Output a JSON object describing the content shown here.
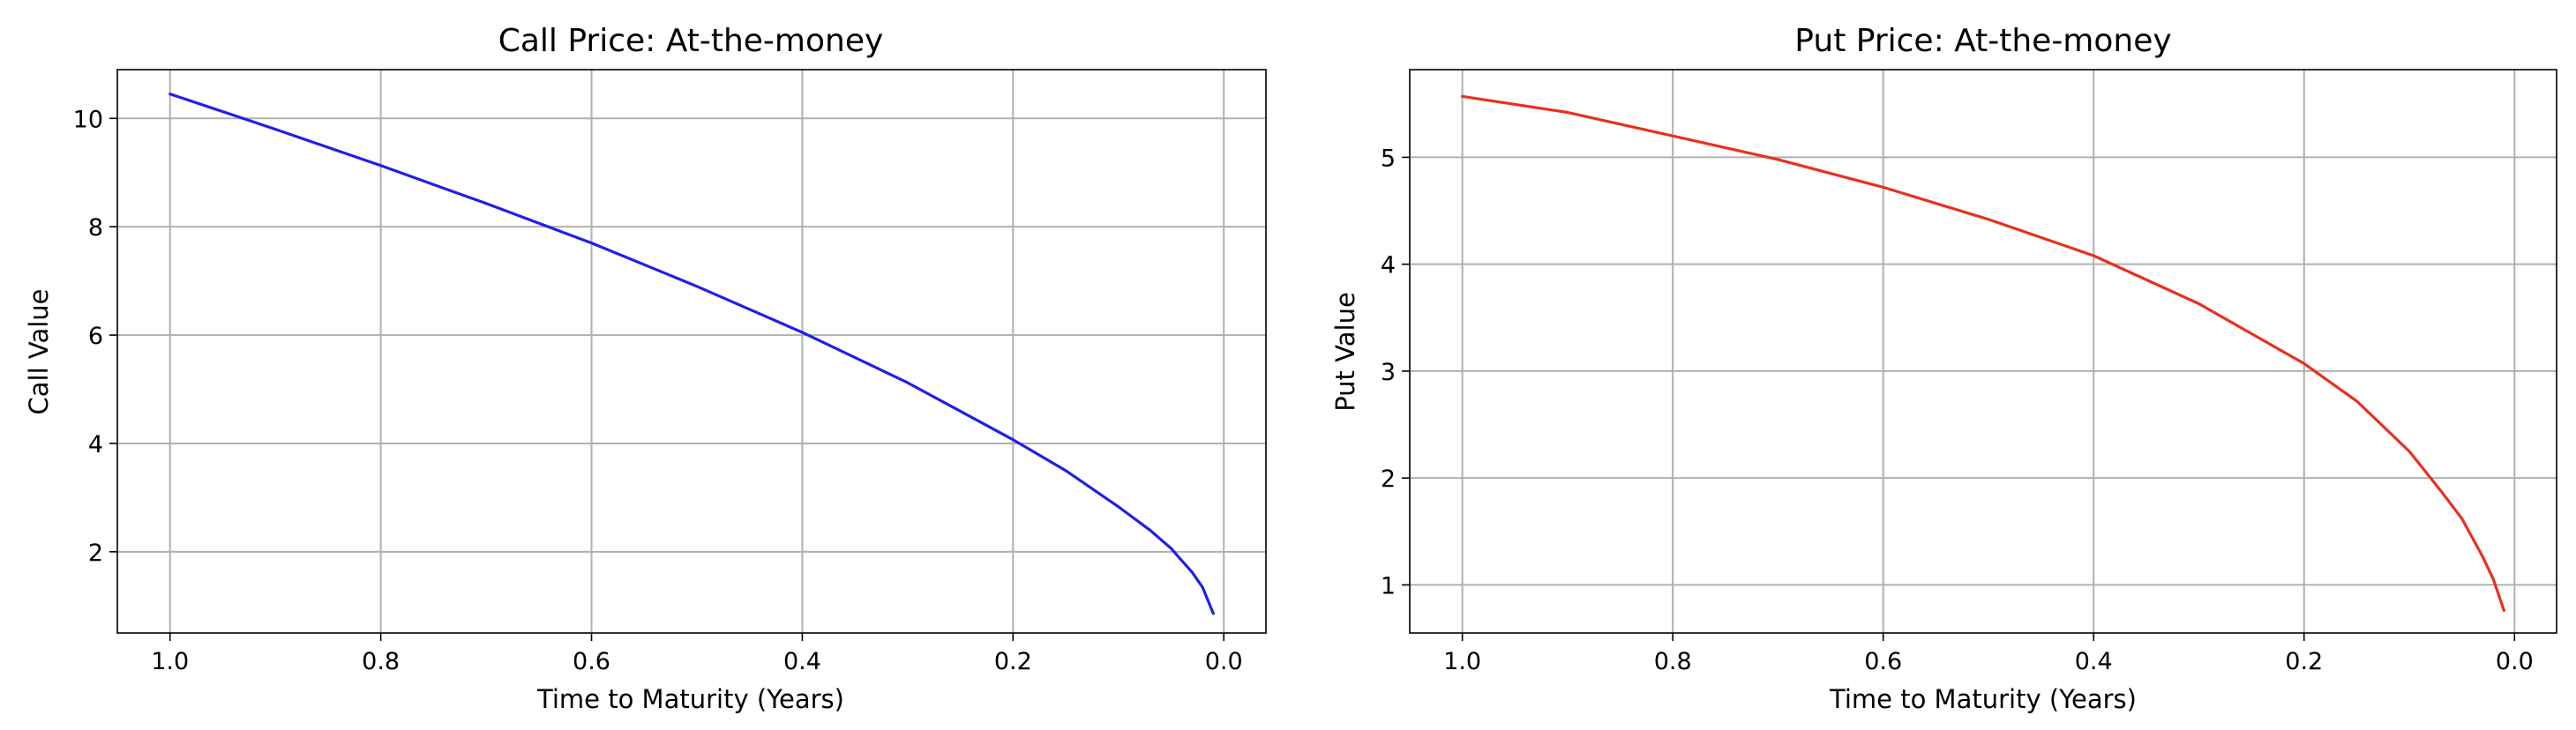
{
  "chart_data": [
    {
      "type": "line",
      "title": "Call Price: At-the-money",
      "xlabel": "Time to Maturity (Years)",
      "ylabel": "Call Value",
      "xlim": [
        1.05,
        -0.04
      ],
      "ylim": [
        0.5,
        10.9
      ],
      "x_ticks": [
        1.0,
        0.8,
        0.6,
        0.4,
        0.2,
        0.0
      ],
      "y_ticks": [
        2,
        4,
        6,
        8,
        10
      ],
      "x_tick_labels": [
        "1.0",
        "0.8",
        "0.6",
        "0.4",
        "0.2",
        "0.0"
      ],
      "y_tick_labels": [
        "2",
        "4",
        "6",
        "8",
        "10"
      ],
      "grid": true,
      "series": [
        {
          "color": "#1f1fe8",
          "x": [
            1.0,
            0.9,
            0.8,
            0.7,
            0.6,
            0.5,
            0.4,
            0.3,
            0.2,
            0.15,
            0.1,
            0.07,
            0.05,
            0.03,
            0.02,
            0.01
          ],
          "y": [
            10.45,
            9.8,
            9.13,
            8.43,
            7.7,
            6.9,
            6.05,
            5.12,
            4.07,
            3.5,
            2.83,
            2.4,
            2.06,
            1.62,
            1.34,
            0.86
          ]
        }
      ]
    },
    {
      "type": "line",
      "title": "Put Price: At-the-money",
      "xlabel": "Time to Maturity (Years)",
      "ylabel": "Put Value",
      "xlim": [
        1.05,
        -0.04
      ],
      "ylim": [
        0.55,
        5.82
      ],
      "x_ticks": [
        1.0,
        0.8,
        0.6,
        0.4,
        0.2,
        0.0
      ],
      "y_ticks": [
        1,
        2,
        3,
        4,
        5
      ],
      "x_tick_labels": [
        "1.0",
        "0.8",
        "0.6",
        "0.4",
        "0.2",
        "0.0"
      ],
      "y_tick_labels": [
        "1",
        "2",
        "3",
        "4",
        "5"
      ],
      "grid": true,
      "series": [
        {
          "color": "#e8301f",
          "x": [
            1.0,
            0.9,
            0.8,
            0.7,
            0.6,
            0.5,
            0.4,
            0.3,
            0.2,
            0.15,
            0.1,
            0.07,
            0.05,
            0.03,
            0.02,
            0.01
          ],
          "y": [
            5.57,
            5.42,
            5.2,
            4.98,
            4.72,
            4.42,
            4.08,
            3.63,
            3.07,
            2.72,
            2.25,
            1.88,
            1.62,
            1.26,
            1.05,
            0.76
          ]
        }
      ]
    }
  ]
}
